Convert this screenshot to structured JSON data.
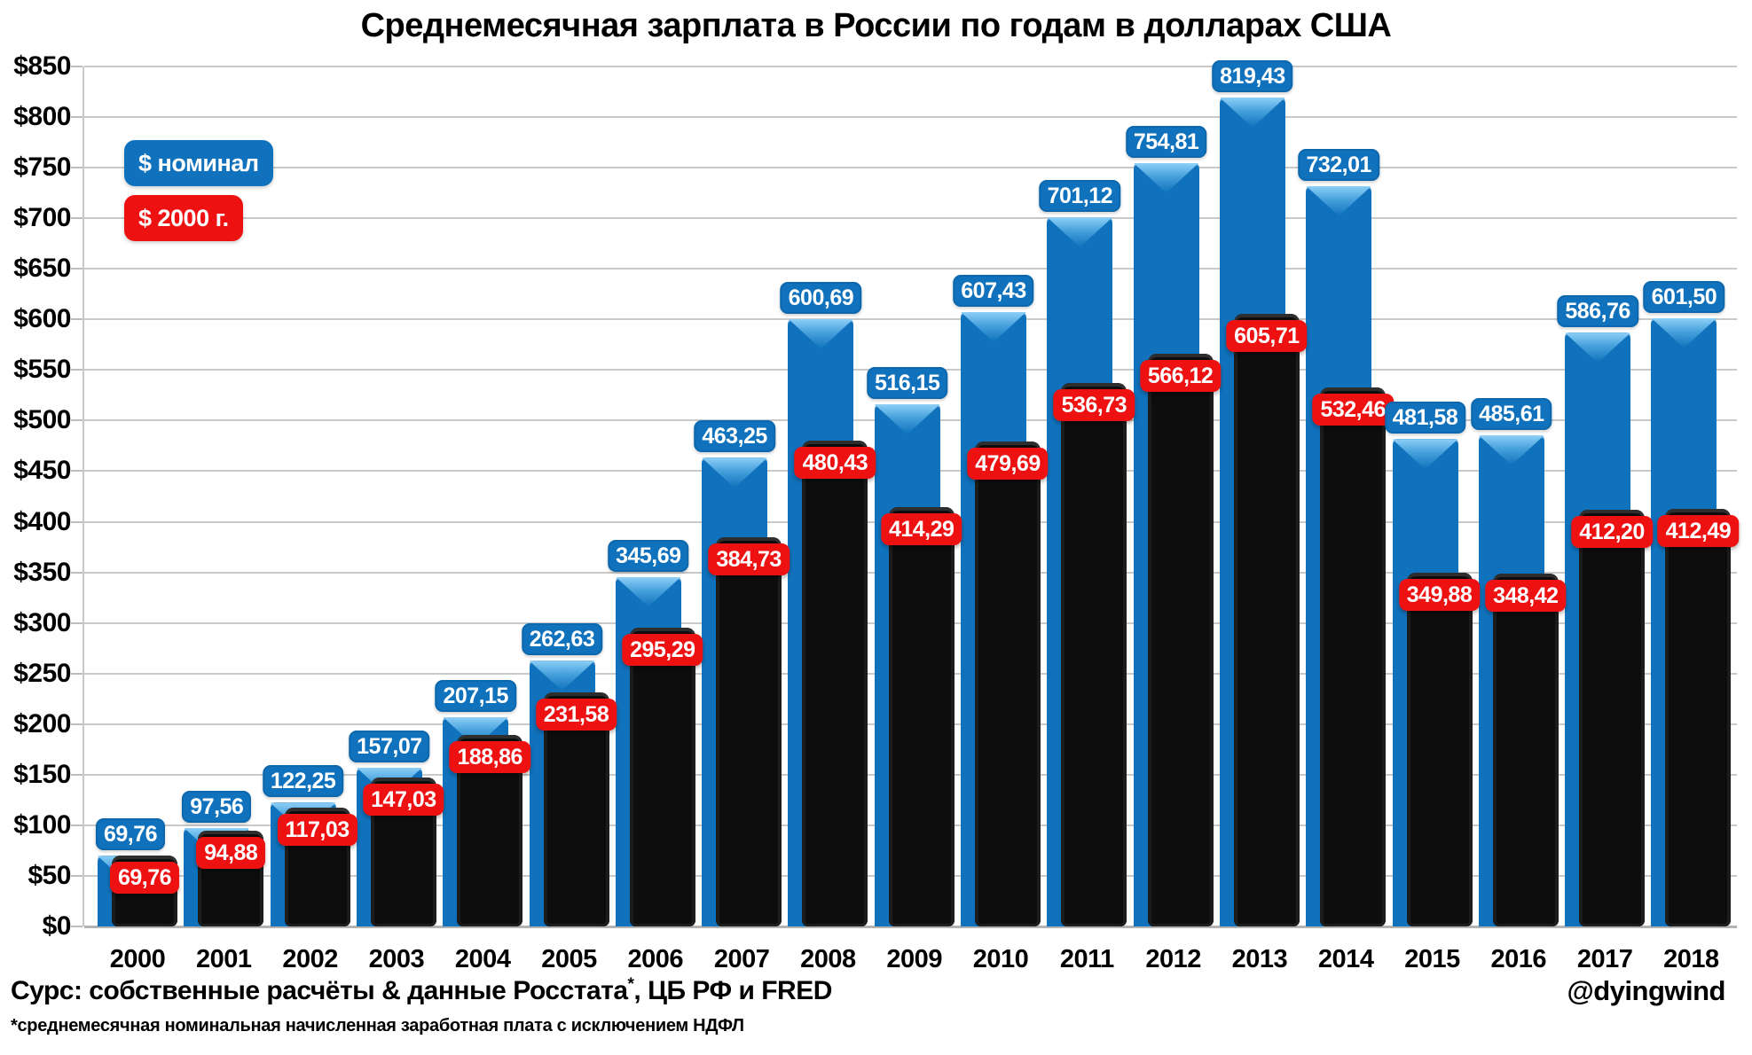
{
  "title": "Среднемесячная зарплата в России по годам в долларах США",
  "legend": {
    "items": [
      {
        "label": "$ номинал",
        "color": "#1072bc"
      },
      {
        "label": "$ 2000 г.",
        "color": "#ee1111"
      }
    ]
  },
  "y_axis": {
    "tick_prefix": "$",
    "min": 0,
    "max": 850,
    "step": 50
  },
  "footer": {
    "source_main": "Сурс: собственные расчёты & данные Росстата",
    "source_sup": "*",
    "source_tail": ", ЦБ РФ и FRED",
    "handle": "@dyingwind",
    "footnote": "*среднемесячная номинальная начисленная заработная плата с исключением НДФЛ"
  },
  "chart_data": {
    "type": "bar",
    "title": "Среднемесячная зарплата в России по годам в долларах США",
    "categories": [
      "2000",
      "2001",
      "2002",
      "2003",
      "2004",
      "2005",
      "2006",
      "2007",
      "2008",
      "2009",
      "2010",
      "2011",
      "2012",
      "2013",
      "2014",
      "2015",
      "2016",
      "2017",
      "2018"
    ],
    "series": [
      {
        "name": "$ номинал",
        "color": "#1072bc",
        "values": [
          69.76,
          97.56,
          122.25,
          157.07,
          207.15,
          262.63,
          345.69,
          463.25,
          600.69,
          516.15,
          607.43,
          701.12,
          754.81,
          819.43,
          732.01,
          481.58,
          485.61,
          586.76,
          601.5
        ],
        "labels": [
          "69,76",
          "97,56",
          "122,25",
          "157,07",
          "207,15",
          "262,63",
          "345,69",
          "463,25",
          "600,69",
          "516,15",
          "607,43",
          "701,12",
          "754,81",
          "819,43",
          "732,01",
          "481,58",
          "485,61",
          "586,76",
          "601,50"
        ]
      },
      {
        "name": "$ 2000 г.",
        "color": "#0d0d0d",
        "label_color": "#ee1111",
        "values": [
          69.76,
          94.88,
          117.03,
          147.03,
          188.86,
          231.58,
          295.29,
          384.73,
          480.43,
          414.29,
          479.69,
          536.73,
          566.12,
          605.71,
          532.46,
          349.88,
          348.42,
          412.2,
          412.49
        ],
        "labels": [
          "69,76",
          "94,88",
          "117,03",
          "147,03",
          "188,86",
          "231,58",
          "295,29",
          "384,73",
          "480,43",
          "414,29",
          "479,69",
          "536,73",
          "566,12",
          "605,71",
          "532,46",
          "349,88",
          "348,42",
          "412,20",
          "412,49"
        ]
      }
    ],
    "ylim": [
      0,
      850
    ],
    "ytick_step": 50,
    "ytick_label_format": "$N",
    "grid": true,
    "legend_position": "upper-left"
  }
}
